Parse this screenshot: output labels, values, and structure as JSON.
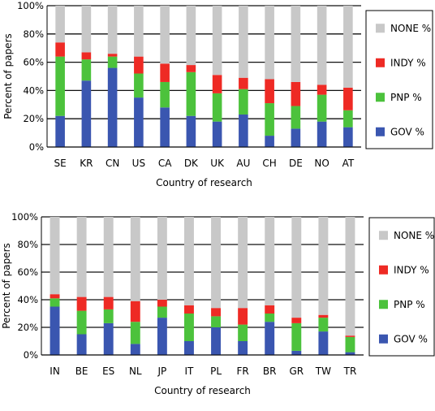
{
  "colors": {
    "gov": "#3a56b0",
    "pnp": "#4cc23c",
    "indy": "#ee2a24",
    "none": "#c8c8c8",
    "grid": "#111111"
  },
  "chart_data": [
    {
      "type": "bar",
      "stacked": true,
      "xlabel": "Country of  research",
      "ylabel": "Percent of papers",
      "ylim": [
        0,
        100
      ],
      "yticks": [
        "0%",
        "20%",
        "40%",
        "60%",
        "80%",
        "100%"
      ],
      "legend_position": "right",
      "categories": [
        "SE",
        "KR",
        "CN",
        "US",
        "CA",
        "DK",
        "UK",
        "AU",
        "CH",
        "DE",
        "NO",
        "AT"
      ],
      "series": [
        {
          "name": "GOV %",
          "color_key": "gov",
          "values": [
            22,
            47,
            56,
            35,
            28,
            22,
            18,
            23,
            8,
            13,
            18,
            14
          ]
        },
        {
          "name": "PNP %",
          "color_key": "pnp",
          "values": [
            42,
            15,
            8,
            17,
            18,
            31,
            20,
            18,
            23,
            16,
            19,
            12
          ]
        },
        {
          "name": "INDY %",
          "color_key": "indy",
          "values": [
            10,
            5,
            2,
            12,
            13,
            5,
            13,
            8,
            17,
            17,
            7,
            16
          ]
        },
        {
          "name": "NONE %",
          "color_key": "none",
          "values": [
            26,
            33,
            34,
            36,
            41,
            42,
            49,
            51,
            52,
            54,
            56,
            58
          ]
        }
      ]
    },
    {
      "type": "bar",
      "stacked": true,
      "xlabel": "Country of research",
      "ylabel": "Percent of papers",
      "ylim": [
        0,
        100
      ],
      "yticks": [
        "0%",
        "20%",
        "40%",
        "60%",
        "80%",
        "100%"
      ],
      "legend_position": "right",
      "categories": [
        "IN",
        "BE",
        "ES",
        "NL",
        "JP",
        "IT",
        "PL",
        "FR",
        "BR",
        "GR",
        "TW",
        "TR"
      ],
      "series": [
        {
          "name": "GOV %",
          "color_key": "gov",
          "values": [
            35,
            15,
            23,
            8,
            27,
            10,
            20,
            10,
            24,
            3,
            17,
            2
          ]
        },
        {
          "name": "PNP %",
          "color_key": "pnp",
          "values": [
            6,
            17,
            10,
            16,
            8,
            20,
            8,
            12,
            6,
            20,
            10,
            11
          ]
        },
        {
          "name": "INDY %",
          "color_key": "indy",
          "values": [
            3,
            10,
            9,
            15,
            5,
            6,
            6,
            12,
            6,
            4,
            2,
            1
          ]
        },
        {
          "name": "NONE %",
          "color_key": "none",
          "values": [
            56,
            58,
            58,
            61,
            60,
            64,
            66,
            66,
            64,
            73,
            71,
            86
          ]
        }
      ]
    }
  ]
}
